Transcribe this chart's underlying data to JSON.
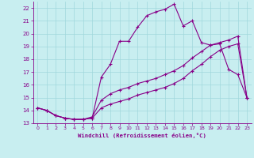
{
  "xlabel": "Windchill (Refroidissement éolien,°C)",
  "bg_color": "#c8eef0",
  "grid_color": "#a0d8dc",
  "line_color": "#880088",
  "xlim": [
    -0.5,
    23.5
  ],
  "ylim": [
    13,
    22.5
  ],
  "yticks": [
    13,
    14,
    15,
    16,
    17,
    18,
    19,
    20,
    21,
    22
  ],
  "xticks": [
    0,
    1,
    2,
    3,
    4,
    5,
    6,
    7,
    8,
    9,
    10,
    11,
    12,
    13,
    14,
    15,
    16,
    17,
    18,
    19,
    20,
    21,
    22,
    23
  ],
  "line1_x": [
    0,
    1,
    2,
    3,
    4,
    5,
    6,
    7,
    8,
    9,
    10,
    11,
    12,
    13,
    14,
    15,
    16,
    17,
    18,
    19,
    20,
    21,
    22,
    23
  ],
  "line1_y": [
    14.2,
    14.0,
    13.6,
    13.4,
    13.3,
    13.3,
    13.4,
    16.6,
    17.6,
    19.4,
    19.4,
    20.5,
    21.4,
    21.7,
    21.9,
    22.3,
    20.6,
    21.0,
    19.3,
    19.1,
    19.2,
    17.2,
    16.8,
    15.0
  ],
  "line2_x": [
    0,
    1,
    2,
    3,
    4,
    5,
    6,
    7,
    8,
    9,
    10,
    11,
    12,
    13,
    14,
    15,
    16,
    17,
    18,
    19,
    20,
    21,
    22,
    23
  ],
  "line2_y": [
    14.2,
    14.0,
    13.6,
    13.4,
    13.3,
    13.3,
    13.4,
    14.2,
    14.5,
    14.7,
    14.9,
    15.2,
    15.4,
    15.6,
    15.8,
    16.1,
    16.5,
    17.1,
    17.6,
    18.2,
    18.7,
    19.0,
    19.2,
    15.0
  ],
  "line3_x": [
    0,
    1,
    2,
    3,
    4,
    5,
    6,
    7,
    8,
    9,
    10,
    11,
    12,
    13,
    14,
    15,
    16,
    17,
    18,
    19,
    20,
    21,
    22,
    23
  ],
  "line3_y": [
    14.2,
    14.0,
    13.6,
    13.4,
    13.3,
    13.3,
    13.5,
    14.8,
    15.3,
    15.6,
    15.8,
    16.1,
    16.3,
    16.5,
    16.8,
    17.1,
    17.5,
    18.1,
    18.6,
    19.1,
    19.3,
    19.5,
    19.8,
    15.0
  ]
}
